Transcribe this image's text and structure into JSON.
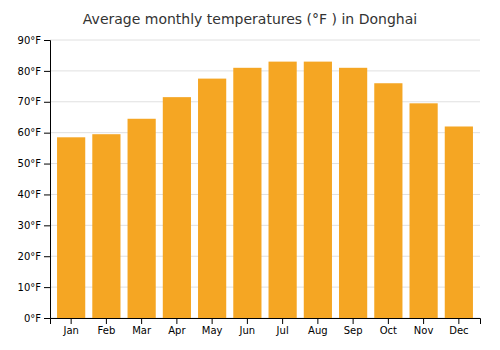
{
  "chart_data": {
    "type": "bar",
    "title": "Average monthly temperatures (°F ) in Donghai",
    "categories": [
      "Jan",
      "Feb",
      "Mar",
      "Apr",
      "May",
      "Jun",
      "Jul",
      "Aug",
      "Sep",
      "Oct",
      "Nov",
      "Dec"
    ],
    "values": [
      58.5,
      59.5,
      64.5,
      71.5,
      77.5,
      81.0,
      83.0,
      83.0,
      81.0,
      76.0,
      69.5,
      62.0
    ],
    "color": "#F5A623",
    "ylim": [
      0,
      90
    ],
    "yticks": [
      {
        "value": 0,
        "label": "0°F"
      },
      {
        "value": 10,
        "label": "10°F"
      },
      {
        "value": 20,
        "label": "20°F"
      },
      {
        "value": 30,
        "label": "30°F"
      },
      {
        "value": 40,
        "label": "40°F"
      },
      {
        "value": 50,
        "label": "50°F"
      },
      {
        "value": 60,
        "label": "60°F"
      },
      {
        "value": 70,
        "label": "70°F"
      },
      {
        "value": 80,
        "label": "80°F"
      },
      {
        "value": 90,
        "label": "90°F"
      }
    ],
    "grid": true
  }
}
